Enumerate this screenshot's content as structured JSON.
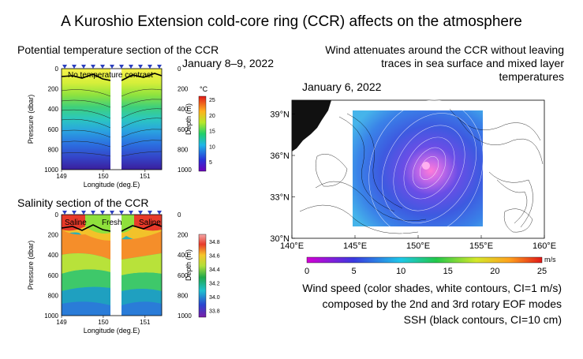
{
  "page": {
    "title": "A Kuroshio Extension cold-core ring (CCR) affects on the atmosphere"
  },
  "left_panel": {
    "temp_title": "Potential temperature section of the CCR",
    "temp_date": "January 8–9, 2022",
    "temp_annotation": "No temperature contrast",
    "temp_unit": "°C",
    "salinity_title": "Salinity section of the CCR",
    "sal_labels": [
      "Saline",
      "Fresh",
      "Saline"
    ]
  },
  "right_panel": {
    "caption_line1": "Wind attenuates around the CCR without leaving",
    "caption_line2": "traces in sea surface and mixed layer",
    "caption_line3": "temperatures",
    "date": "January 6, 2022",
    "wind_unit": "m/s",
    "bottom_line1": "Wind speed (color shades, white contours, CI=1 m/s)",
    "bottom_line2": "composed by the  2nd  and  3rd rotary EOF modes",
    "bottom_line3": "SSH (black contours, CI=10 cm)"
  },
  "chart_data": [
    {
      "type": "heatmap",
      "title": "Potential temperature section of the CCR",
      "xlabel": "Longitude (deg.E)",
      "ylabel": "Pressure (dbar)",
      "y2label": "Depth (m)",
      "x_ticks": [
        "149",
        "150",
        "151"
      ],
      "xlim": [
        149,
        151.4
      ],
      "ylim": [
        1000,
        0
      ],
      "y_ticks": [
        "0",
        "200",
        "400",
        "600",
        "800",
        "1000"
      ],
      "y2_ticks": [
        "0",
        "200",
        "400",
        "600",
        "800",
        "1000"
      ],
      "colorbar_ticks": [
        "25",
        "20",
        "15",
        "10",
        "5"
      ],
      "colorbar_range": [
        2,
        26
      ]
    },
    {
      "type": "heatmap",
      "title": "Salinity section of the CCR",
      "xlabel": "Longitude (deg.E)",
      "ylabel": "Pressure (dbar)",
      "y2label": "Depth (m)",
      "x_ticks": [
        "149",
        "150",
        "151"
      ],
      "xlim": [
        149,
        151.4
      ],
      "ylim": [
        1000,
        0
      ],
      "y_ticks": [
        "0",
        "200",
        "400",
        "600",
        "800",
        "1000"
      ],
      "y2_ticks": [
        "0",
        "200",
        "400",
        "600",
        "800",
        "1000"
      ],
      "colorbar_ticks": [
        "34.8",
        "34.6",
        "34.4",
        "34.2",
        "34.0",
        "33.8"
      ],
      "colorbar_range": [
        33.7,
        34.9
      ]
    },
    {
      "type": "heatmap",
      "title": "January 6, 2022",
      "x_ticks": [
        "140°E",
        "145°E",
        "150°E",
        "155°E",
        "160°E"
      ],
      "y_ticks": [
        "39°N",
        "36°N",
        "33°N",
        "30°N"
      ],
      "xlim": [
        140,
        160
      ],
      "ylim": [
        30,
        40
      ],
      "colorbar_ticks": [
        "0",
        "5",
        "10",
        "15",
        "20",
        "25"
      ],
      "colorbar_range": [
        0,
        25
      ],
      "ccr_center": [
        151.8,
        35.2
      ]
    }
  ]
}
